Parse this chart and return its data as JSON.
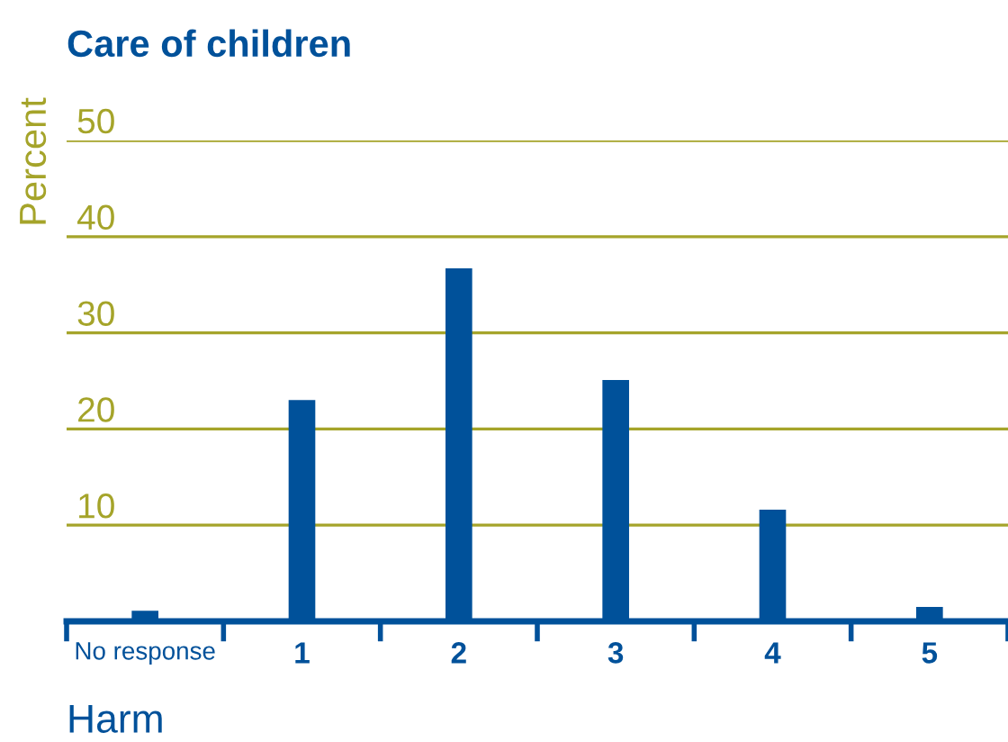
{
  "chart_data": {
    "type": "bar",
    "title": "Care of children",
    "xlabel": "Harm",
    "ylabel": "Percent",
    "categories": [
      "No response",
      "1",
      "2",
      "3",
      "4",
      "5"
    ],
    "values": [
      1.1,
      23.0,
      36.7,
      25.1,
      11.6,
      1.5
    ],
    "color": "#00519a",
    "ylim": [
      0,
      50
    ],
    "yticks": [
      {
        "value": 0,
        "label": null
      },
      10,
      20,
      30,
      40,
      50
    ],
    "grid": "y",
    "legend": false
  }
}
